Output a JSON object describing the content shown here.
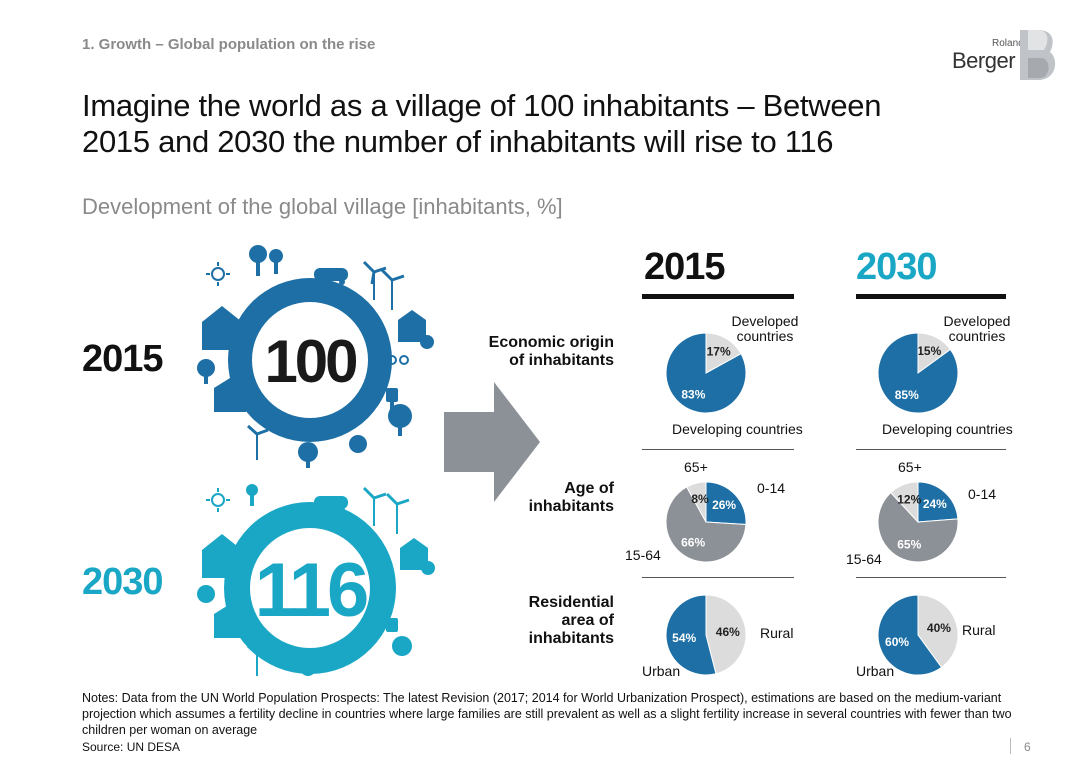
{
  "header": {
    "section": "1. Growth – Global population on the rise",
    "title": "Imagine the world as a village of 100 inhabitants – Between 2015 and 2030 the number of inhabitants will rise to 116",
    "subtitle": "Development of the global village [inhabitants, %]"
  },
  "logo": {
    "line1": "Roland",
    "line2": "Berger"
  },
  "village": {
    "y2015": {
      "year": "2015",
      "value": "100",
      "color": "#1d6fa5"
    },
    "y2030": {
      "year": "2030",
      "value": "116",
      "color": "#1aa7c6"
    }
  },
  "columns": {
    "c2015": "2015",
    "c2030": "2030"
  },
  "rows": {
    "economic": "Economic origin of inhabitants",
    "age": "Age of inhabitants",
    "residential": "Residential area of inhabitants"
  },
  "labels": {
    "developed": "Developed countries",
    "developing": "Developing countries",
    "age65": "65+",
    "age014": "0-14",
    "age1564": "15-64",
    "rural": "Rural",
    "urban": "Urban"
  },
  "colors": {
    "blue": "#1d6fa5",
    "teal": "#1aa7c6",
    "gray": "#8c9197",
    "lightgray": "#dcdcdc"
  },
  "chart_data": [
    {
      "type": "pie",
      "title": "2015 Economic origin of inhabitants",
      "categories": [
        "Developed countries",
        "Developing countries"
      ],
      "values": [
        17,
        83
      ]
    },
    {
      "type": "pie",
      "title": "2030 Economic origin of inhabitants",
      "categories": [
        "Developed countries",
        "Developing countries"
      ],
      "values": [
        15,
        85
      ]
    },
    {
      "type": "pie",
      "title": "2015 Age of inhabitants",
      "categories": [
        "0-14",
        "15-64",
        "65+"
      ],
      "values": [
        26,
        66,
        8
      ]
    },
    {
      "type": "pie",
      "title": "2030 Age of inhabitants",
      "categories": [
        "0-14",
        "15-64",
        "65+"
      ],
      "values": [
        24,
        65,
        12
      ]
    },
    {
      "type": "pie",
      "title": "2015 Residential area of inhabitants",
      "categories": [
        "Rural",
        "Urban"
      ],
      "values": [
        46,
        54
      ]
    },
    {
      "type": "pie",
      "title": "2030 Residential area of inhabitants",
      "categories": [
        "Rural",
        "Urban"
      ],
      "values": [
        40,
        60
      ]
    }
  ],
  "pie_labels": {
    "e2015": [
      "17%",
      "83%"
    ],
    "e2030": [
      "15%",
      "85%"
    ],
    "a2015": [
      "26%",
      "66%",
      "8%"
    ],
    "a2030": [
      "24%",
      "65%",
      "12%"
    ],
    "r2015": [
      "46%",
      "54%"
    ],
    "r2030": [
      "40%",
      "60%"
    ]
  },
  "footer": {
    "notes": "Notes: Data from the UN World Population Prospects: The latest Revision (2017; 2014 for World Urbanization Prospect), estimations are based on the medium-variant projection which assumes a fertility decline in countries where large families are still prevalent as well as a slight fertility increase in several countries with fewer than two children per woman on average",
    "source": "Source: UN DESA",
    "page": "6"
  }
}
